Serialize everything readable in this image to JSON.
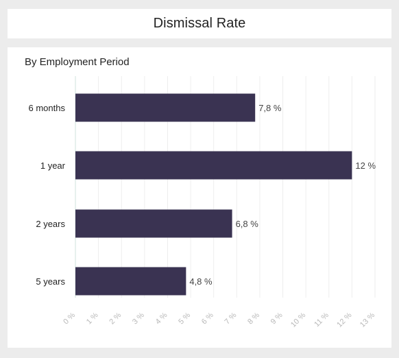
{
  "title": "Dismissal Rate",
  "subtitle": "By Employment Period",
  "colors": {
    "bar": "#3a3352",
    "grid": "#eeeeee",
    "axis": "#cfe3dc"
  },
  "chart_data": {
    "type": "bar",
    "orientation": "horizontal",
    "title": "Dismissal Rate",
    "subtitle": "By Employment Period",
    "categories": [
      "6 months",
      "1 year",
      "2 years",
      "5 years"
    ],
    "values": [
      7.8,
      12,
      6.8,
      4.8
    ],
    "value_labels": [
      "7,8 %",
      "12 %",
      "6,8 %",
      "4,8 %"
    ],
    "xlim": [
      0,
      13
    ],
    "ticks": [
      0,
      1,
      2,
      3,
      4,
      5,
      6,
      7,
      8,
      9,
      10,
      11,
      12,
      13
    ],
    "tick_labels": [
      "0 %",
      "1 %",
      "2 %",
      "3 %",
      "4 %",
      "5 %",
      "6 %",
      "7 %",
      "8 %",
      "9 %",
      "10 %",
      "11 %",
      "12 %",
      "13 %"
    ],
    "grid": true,
    "legend": "none"
  }
}
